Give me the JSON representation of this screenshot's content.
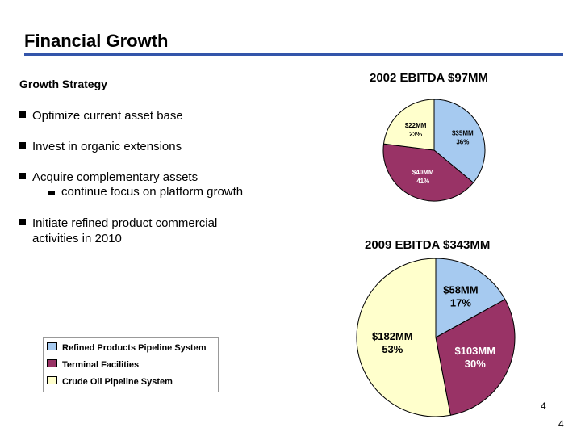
{
  "title": "Financial Growth",
  "subhead": "Growth Strategy",
  "bullets": [
    "Optimize current asset base",
    "Invest in organic extensions",
    "Acquire complementary assets",
    "Initiate refined product commercial activities in 2010"
  ],
  "sub_bullet": "continue focus on platform growth",
  "legend": [
    {
      "label": "Refined Products Pipeline System",
      "color": "#a6caf0"
    },
    {
      "label": "Terminal Facilities",
      "color": "#993366"
    },
    {
      "label": "Crude Oil Pipeline System",
      "color": "#ffffcc"
    }
  ],
  "page_numbers": [
    "4",
    "4"
  ],
  "chart_data": [
    {
      "type": "pie",
      "title": "2002 EBITDA $97MM",
      "categories": [
        "Refined Products Pipeline System",
        "Terminal Facilities",
        "Crude Oil Pipeline System"
      ],
      "values": [
        36,
        41,
        23
      ],
      "labels": [
        [
          "$35MM",
          "36%"
        ],
        [
          "$40MM",
          "41%"
        ],
        [
          "$22MM",
          "23%"
        ]
      ],
      "colors": [
        "#a6caf0",
        "#993366",
        "#ffffcc"
      ],
      "start_angle_deg": 0
    },
    {
      "type": "pie",
      "title": "2009 EBITDA $343MM",
      "categories": [
        "Refined Products Pipeline System",
        "Terminal Facilities",
        "Crude Oil Pipeline System"
      ],
      "values": [
        17,
        30,
        53
      ],
      "labels": [
        [
          "$58MM",
          "17%"
        ],
        [
          "$103MM",
          "30%"
        ],
        [
          "$182MM",
          "53%"
        ]
      ],
      "colors": [
        "#a6caf0",
        "#993366",
        "#ffffcc"
      ],
      "start_angle_deg": 0
    }
  ]
}
